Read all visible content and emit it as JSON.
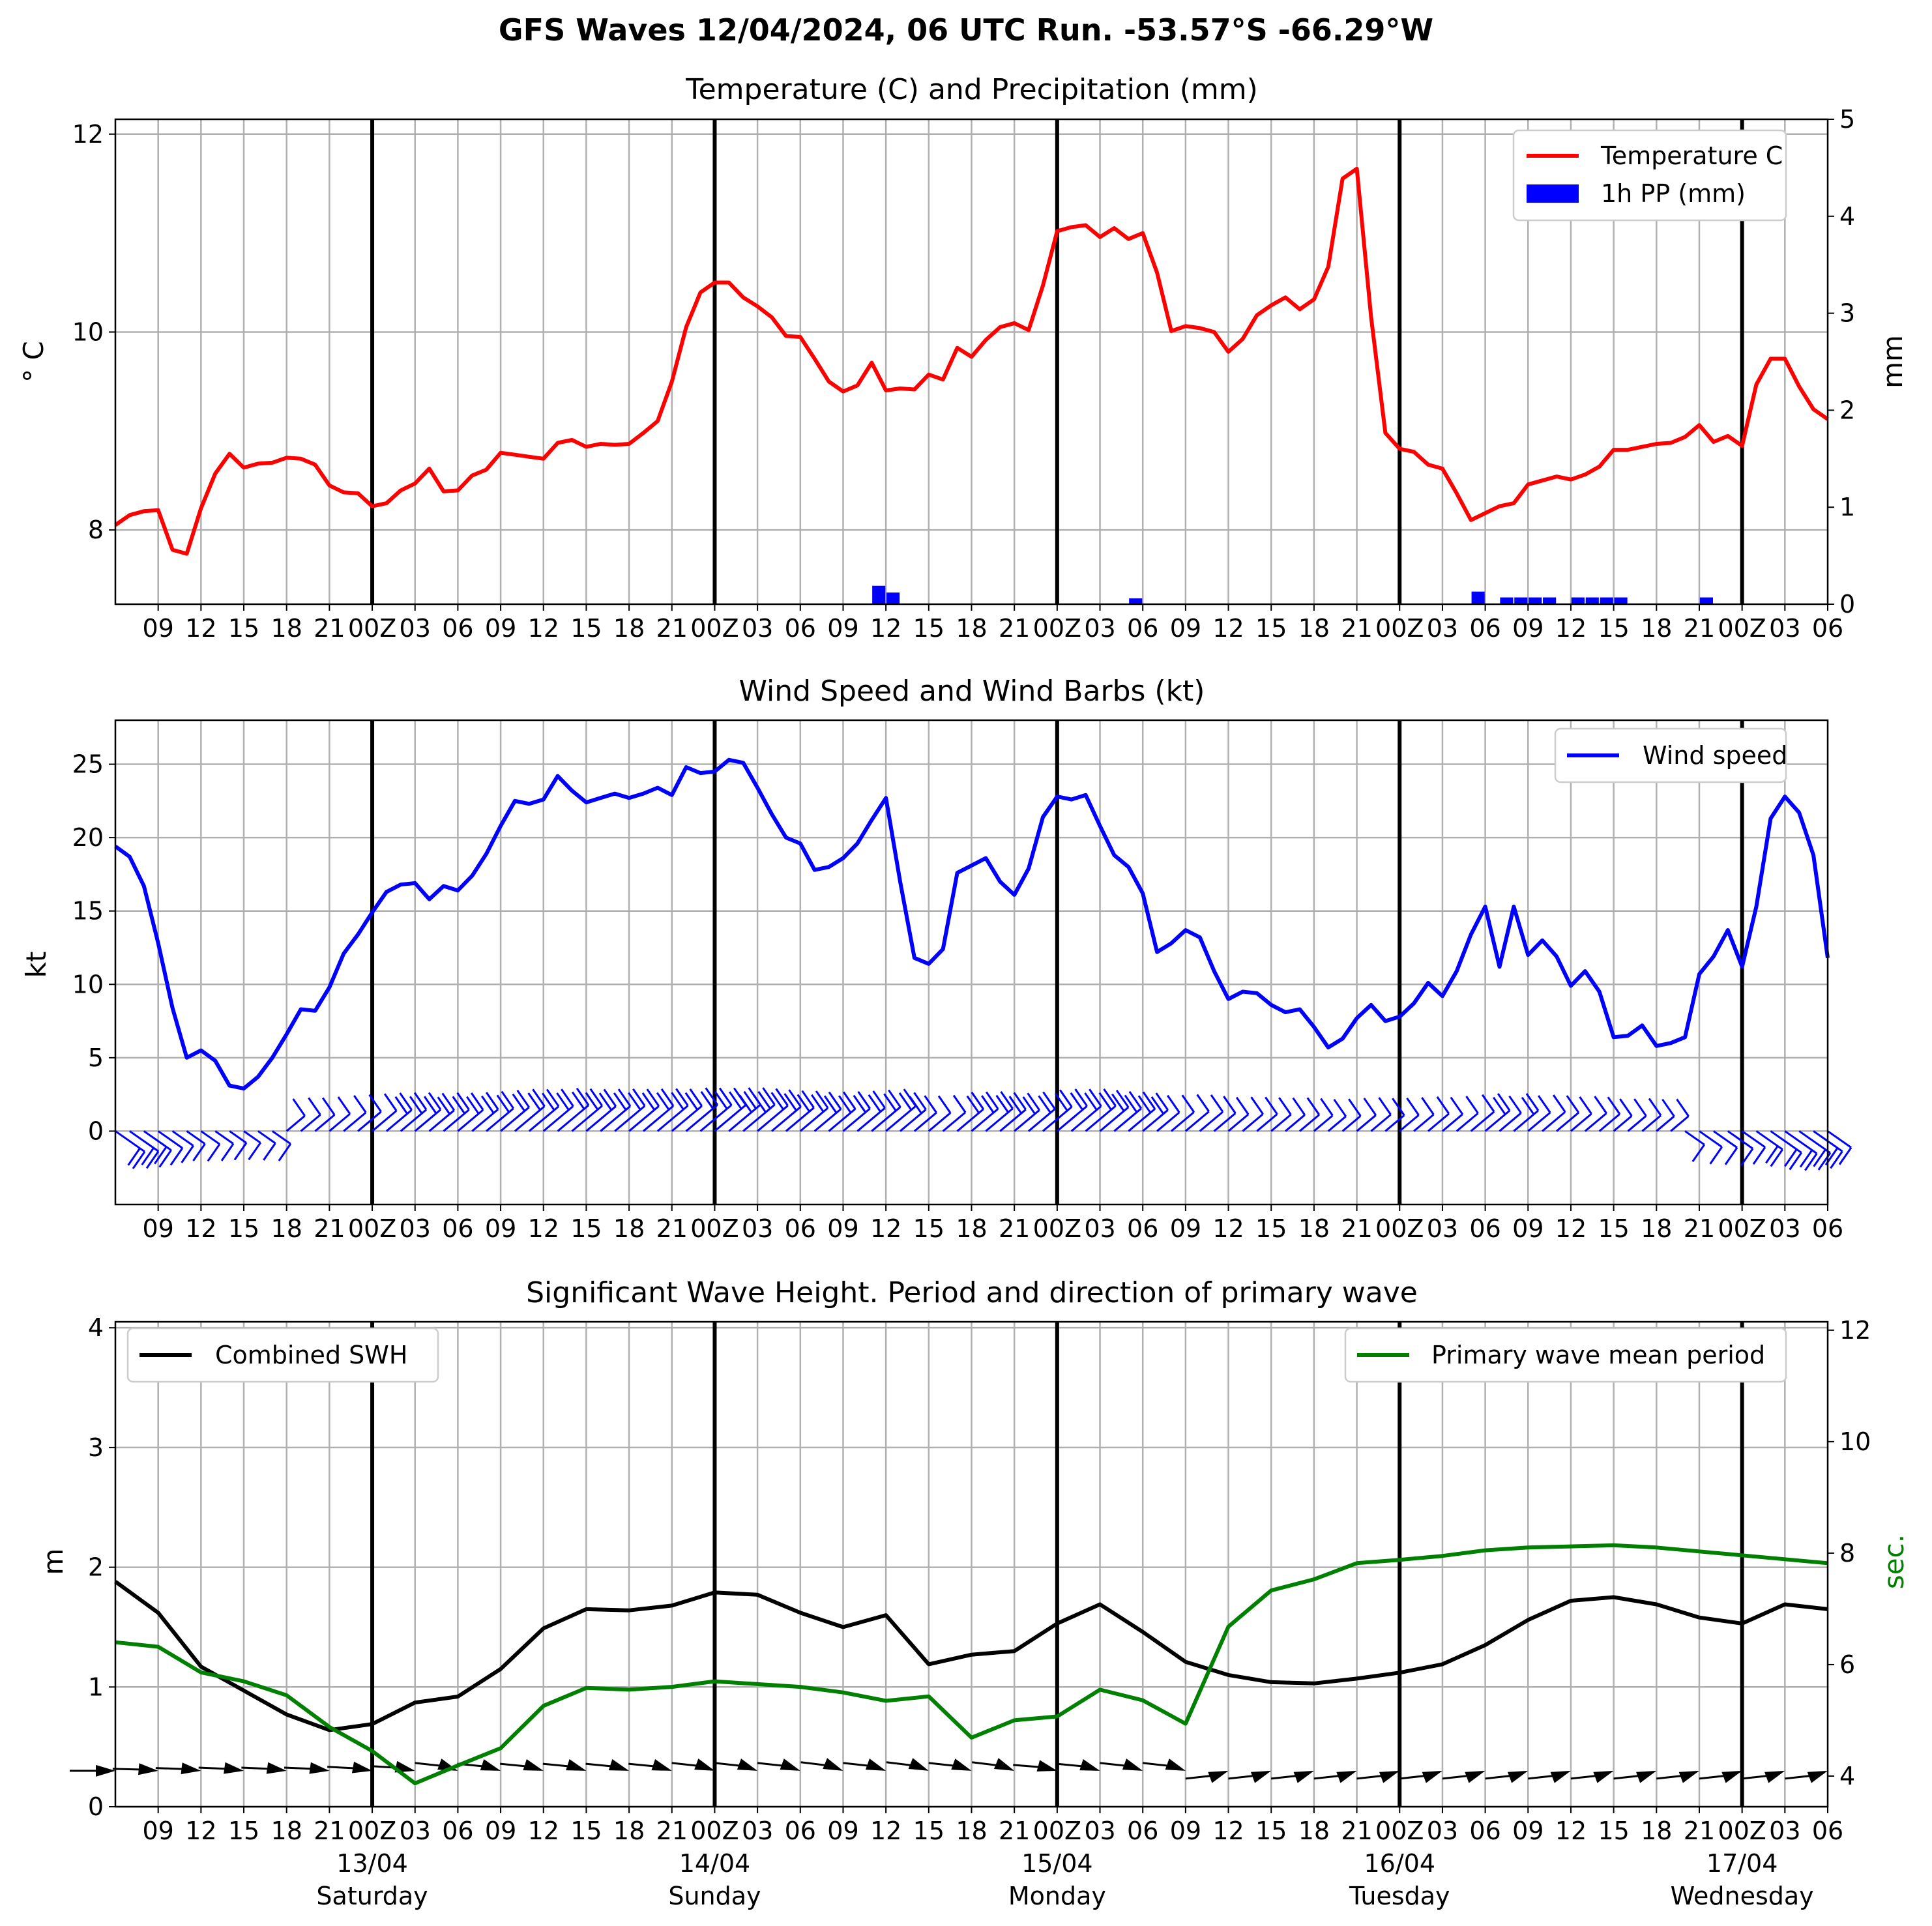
{
  "suptitle": "GFS Waves 12/04/2024, 06 UTC Run. -53.57°S -66.29°W",
  "colors": {
    "temp": "#ff0000",
    "precip": "#0000ff",
    "wind": "#0000ff",
    "swh": "#000000",
    "period": "#008000",
    "grid": "#b0b0b0"
  },
  "chart_data": [
    {
      "type": "line",
      "title": "Temperature (C) and Precipitation (mm)",
      "ylabel": "$^\\circ$C",
      "ylabel_display": "° C",
      "y2label": "mm",
      "ylim": [
        7.25,
        12.15
      ],
      "y2lim": [
        0,
        5
      ],
      "yticks": [
        8,
        10,
        12
      ],
      "y2ticks": [
        0,
        1,
        2,
        3,
        4,
        5
      ],
      "xlim_hours": [
        0,
        120
      ],
      "xtick_labels": [
        "09",
        "12",
        "15",
        "18",
        "21",
        "00Z",
        "03",
        "06",
        "09",
        "12",
        "15",
        "18",
        "21",
        "00Z",
        "03",
        "06",
        "09",
        "12",
        "15",
        "18",
        "21",
        "00Z",
        "03",
        "06",
        "09",
        "12",
        "15",
        "18",
        "21",
        "00Z",
        "03",
        "06",
        "09",
        "12",
        "15",
        "18",
        "21",
        "00Z",
        "03",
        "06"
      ],
      "day_lines_hours": [
        18,
        42,
        66,
        90,
        114
      ],
      "legend_position": "upper right",
      "series": [
        {
          "name": "Temperature C",
          "x_hours": [
            0,
            1,
            2,
            3,
            4,
            5,
            6,
            7,
            8,
            9,
            10,
            11,
            12,
            13,
            14,
            15,
            16,
            17,
            18,
            19,
            20,
            21,
            22,
            23,
            24,
            25,
            26,
            27,
            28,
            29,
            30,
            31,
            32,
            33,
            34,
            35,
            36,
            37,
            38,
            39,
            40,
            41,
            42,
            43,
            44,
            45,
            46,
            47,
            48,
            49,
            50,
            51,
            52,
            53,
            54,
            55,
            56,
            57,
            58,
            59,
            60,
            61,
            62,
            63,
            64,
            65,
            66,
            67,
            68,
            69,
            70,
            71,
            72,
            73,
            74,
            75,
            76,
            77,
            78,
            79,
            80,
            81,
            82,
            83,
            84,
            85,
            86,
            87,
            88,
            89,
            90,
            91,
            92,
            93,
            94,
            95,
            96,
            97,
            98,
            99,
            100,
            101,
            102,
            103,
            104,
            105,
            106,
            107,
            108,
            109,
            110,
            111,
            112,
            113,
            114,
            115,
            116,
            117,
            118,
            119,
            120
          ],
          "values": [
            8.05,
            8.15,
            8.19,
            8.2,
            7.8,
            7.76,
            8.22,
            8.57,
            8.77,
            8.63,
            8.67,
            8.68,
            8.73,
            8.72,
            8.66,
            8.45,
            8.38,
            8.37,
            8.24,
            8.27,
            8.4,
            8.47,
            8.62,
            8.39,
            8.4,
            8.55,
            8.61,
            8.78,
            8.76,
            8.74,
            8.72,
            8.88,
            8.91,
            8.84,
            8.87,
            8.86,
            8.87,
            8.98,
            9.1,
            9.5,
            10.05,
            10.4,
            10.5,
            10.5,
            10.35,
            10.26,
            10.15,
            9.96,
            9.95,
            9.73,
            9.5,
            9.4,
            9.46,
            9.69,
            9.41,
            9.43,
            9.42,
            9.57,
            9.52,
            9.84,
            9.75,
            9.92,
            10.05,
            10.09,
            10.02,
            10.47,
            11.02,
            11.06,
            11.08,
            10.96,
            11.05,
            10.94,
            11.0,
            10.6,
            10.01,
            10.06,
            10.04,
            10.0,
            9.8,
            9.93,
            10.17,
            10.27,
            10.35,
            10.23,
            10.33,
            10.66,
            11.55,
            11.65,
            10.15,
            8.98,
            8.82,
            8.79,
            8.66,
            8.62,
            8.37,
            8.1,
            8.17,
            8.24,
            8.27,
            8.46,
            8.5,
            8.54,
            8.51,
            8.56,
            8.64,
            8.81,
            8.81,
            8.84,
            8.87,
            8.88,
            8.94,
            9.06,
            8.89,
            8.95,
            8.85,
            9.47,
            9.73,
            9.73,
            9.45,
            9.22,
            9.12
          ]
        },
        {
          "name": "1h PP (mm)",
          "type": "bar",
          "x_hours": [
            53.5,
            54.5,
            71.5,
            95.5,
            97.5,
            98.5,
            99.5,
            100.5,
            102.5,
            103.5,
            104.5,
            105.5,
            111.5
          ],
          "values": [
            0.19,
            0.12,
            0.06,
            0.13,
            0.07,
            0.07,
            0.07,
            0.07,
            0.07,
            0.07,
            0.07,
            0.07,
            0.07
          ]
        }
      ]
    },
    {
      "type": "line",
      "title": "Wind Speed and Wind Barbs (kt)",
      "ylabel": "kt",
      "ylim": [
        -5,
        28
      ],
      "yticks": [
        0,
        5,
        10,
        15,
        20,
        25
      ],
      "xlim_hours": [
        0,
        120
      ],
      "xtick_labels": [
        "09",
        "12",
        "15",
        "18",
        "21",
        "00Z",
        "03",
        "06",
        "09",
        "12",
        "15",
        "18",
        "21",
        "00Z",
        "03",
        "06",
        "09",
        "12",
        "15",
        "18",
        "21",
        "00Z",
        "03",
        "06",
        "09",
        "12",
        "15",
        "18",
        "21",
        "00Z",
        "03",
        "06",
        "09",
        "12",
        "15",
        "18",
        "21",
        "00Z",
        "03",
        "06"
      ],
      "legend_position": "upper right",
      "series": [
        {
          "name": "Wind speed",
          "x_hours": [
            0,
            1,
            2,
            3,
            4,
            5,
            6,
            7,
            8,
            9,
            10,
            11,
            12,
            13,
            14,
            15,
            16,
            17,
            18,
            19,
            20,
            21,
            22,
            23,
            24,
            25,
            26,
            27,
            28,
            29,
            30,
            31,
            32,
            33,
            34,
            35,
            36,
            37,
            38,
            39,
            40,
            41,
            42,
            43,
            44,
            45,
            46,
            47,
            48,
            49,
            50,
            51,
            52,
            53,
            54,
            55,
            56,
            57,
            58,
            59,
            60,
            61,
            62,
            63,
            64,
            65,
            66,
            67,
            68,
            69,
            70,
            71,
            72,
            73,
            74,
            75,
            76,
            77,
            78,
            79,
            80,
            81,
            82,
            83,
            84,
            85,
            86,
            87,
            88,
            89,
            90,
            91,
            92,
            93,
            94,
            95,
            96,
            97,
            98,
            99,
            100,
            101,
            102,
            103,
            104,
            105,
            106,
            107,
            108,
            109,
            110,
            111,
            112,
            113,
            114,
            115,
            116,
            117,
            118,
            119,
            120
          ],
          "values": [
            19.4,
            18.7,
            16.7,
            12.8,
            8.4,
            5.0,
            5.5,
            4.8,
            3.1,
            2.9,
            3.7,
            5.0,
            6.6,
            8.3,
            8.2,
            9.8,
            12.1,
            13.4,
            14.9,
            16.3,
            16.8,
            16.9,
            15.8,
            16.7,
            16.4,
            17.4,
            18.9,
            20.8,
            22.5,
            22.3,
            22.6,
            24.2,
            23.2,
            22.4,
            22.7,
            23.0,
            22.7,
            23.0,
            23.4,
            22.9,
            24.8,
            24.4,
            24.5,
            25.3,
            25.1,
            23.4,
            21.6,
            20.0,
            19.6,
            17.8,
            18.0,
            18.6,
            19.6,
            21.2,
            22.7,
            17.0,
            11.8,
            11.4,
            12.4,
            17.6,
            18.1,
            18.6,
            17.0,
            16.1,
            17.9,
            21.4,
            22.8,
            22.6,
            22.9,
            20.8,
            18.8,
            18.0,
            16.2,
            12.2,
            12.8,
            13.7,
            13.2,
            10.9,
            9.0,
            9.5,
            9.4,
            8.6,
            8.1,
            8.3,
            7.1,
            5.7,
            6.3,
            7.7,
            8.6,
            7.5,
            7.8,
            8.7,
            10.1,
            9.2,
            10.9,
            13.4,
            15.3,
            11.2,
            15.3,
            12.0,
            13.0,
            11.9,
            9.9,
            10.9,
            9.5,
            6.4,
            6.5,
            7.2,
            5.8,
            6.0,
            6.4,
            10.7,
            11.9,
            13.7,
            11.2,
            15.3,
            21.3,
            22.8,
            21.7,
            18.8,
            11.8
          ]
        }
      ]
    },
    {
      "type": "line",
      "title": "Significant Wave Height. Period and direction of primary wave",
      "ylabel": "m",
      "y2label": "sec.",
      "ylim": [
        0,
        4.05
      ],
      "y2lim": [
        3.45,
        12.15
      ],
      "yticks": [
        0,
        1,
        2,
        3,
        4
      ],
      "y2ticks": [
        4,
        6,
        8,
        10,
        12
      ],
      "xlim_hours": [
        0,
        120
      ],
      "xtick_labels": [
        "09",
        "12",
        "15",
        "18",
        "21",
        "00Z",
        "03",
        "06",
        "09",
        "12",
        "15",
        "18",
        "21",
        "00Z",
        "03",
        "06",
        "09",
        "12",
        "15",
        "18",
        "21",
        "00Z",
        "03",
        "06",
        "09",
        "12",
        "15",
        "18",
        "21",
        "00Z",
        "03",
        "06",
        "09",
        "12",
        "15",
        "18",
        "21",
        "00Z",
        "03",
        "06"
      ],
      "date_labels": [
        "13/04",
        "14/04",
        "15/04",
        "16/04",
        "17/04"
      ],
      "weekday_labels": [
        "Saturday",
        "Sunday",
        "Monday",
        "Tuesday",
        "Wednesday"
      ],
      "series": [
        {
          "name": "Combined SWH",
          "x_hours": [
            0,
            3,
            6,
            9,
            12,
            15,
            18,
            21,
            24,
            27,
            30,
            33,
            36,
            39,
            42,
            45,
            48,
            51,
            54,
            57,
            60,
            63,
            66,
            69,
            72,
            75,
            78,
            81,
            84,
            87,
            90,
            93,
            96,
            99,
            102,
            105,
            108,
            111,
            114,
            117,
            120
          ],
          "values": [
            1.88,
            1.62,
            1.17,
            0.97,
            0.77,
            0.64,
            0.69,
            0.87,
            0.92,
            1.15,
            1.49,
            1.65,
            1.64,
            1.68,
            1.79,
            1.77,
            1.62,
            1.5,
            1.6,
            1.19,
            1.27,
            1.3,
            1.53,
            1.69,
            1.46,
            1.21,
            1.1,
            1.04,
            1.03,
            1.07,
            1.12,
            1.19,
            1.35,
            1.56,
            1.72,
            1.75,
            1.69,
            1.58,
            1.53,
            1.69,
            1.65
          ]
        },
        {
          "name": "Primary wave mean period",
          "axis": "secondary",
          "x_hours": [
            0,
            3,
            6,
            9,
            12,
            15,
            18,
            21,
            24,
            27,
            30,
            33,
            36,
            39,
            42,
            45,
            48,
            51,
            54,
            57,
            60,
            63,
            66,
            69,
            72,
            75,
            78,
            81,
            84,
            87,
            90,
            93,
            96,
            99,
            102,
            105,
            108,
            111,
            114,
            117,
            120
          ],
          "values": [
            6.4,
            6.32,
            5.86,
            5.7,
            5.45,
            4.88,
            4.45,
            3.87,
            4.19,
            4.5,
            5.26,
            5.58,
            5.55,
            5.6,
            5.7,
            5.65,
            5.6,
            5.5,
            5.35,
            5.43,
            4.69,
            5.0,
            5.07,
            5.55,
            5.36,
            4.94,
            6.68,
            7.33,
            7.53,
            7.82,
            7.88,
            7.95,
            8.05,
            8.1,
            8.12,
            8.14,
            8.1,
            8.03,
            7.96,
            7.89,
            7.82
          ]
        },
        {
          "name": "direction",
          "x_hours": [
            0,
            3,
            6,
            9,
            12,
            15,
            18,
            21,
            24,
            27,
            30,
            33,
            36,
            39,
            42,
            45,
            48,
            51,
            54,
            57,
            60,
            63,
            66,
            69,
            72,
            75,
            78,
            81,
            84,
            87,
            90,
            93,
            96,
            99,
            102,
            105,
            108,
            111,
            114,
            117,
            120
          ],
          "arrow_angle_deg": [
            0,
            -5,
            -7,
            -8,
            -8,
            -8,
            -10,
            -12,
            -20,
            -18,
            -18,
            -18,
            -18,
            -18,
            -20,
            -20,
            -20,
            -22,
            -20,
            -22,
            -20,
            -22,
            -15,
            -18,
            -20,
            -20,
            20,
            20,
            20,
            20,
            20,
            20,
            20,
            20,
            20,
            20,
            20,
            20,
            20,
            20,
            20
          ]
        }
      ]
    }
  ]
}
